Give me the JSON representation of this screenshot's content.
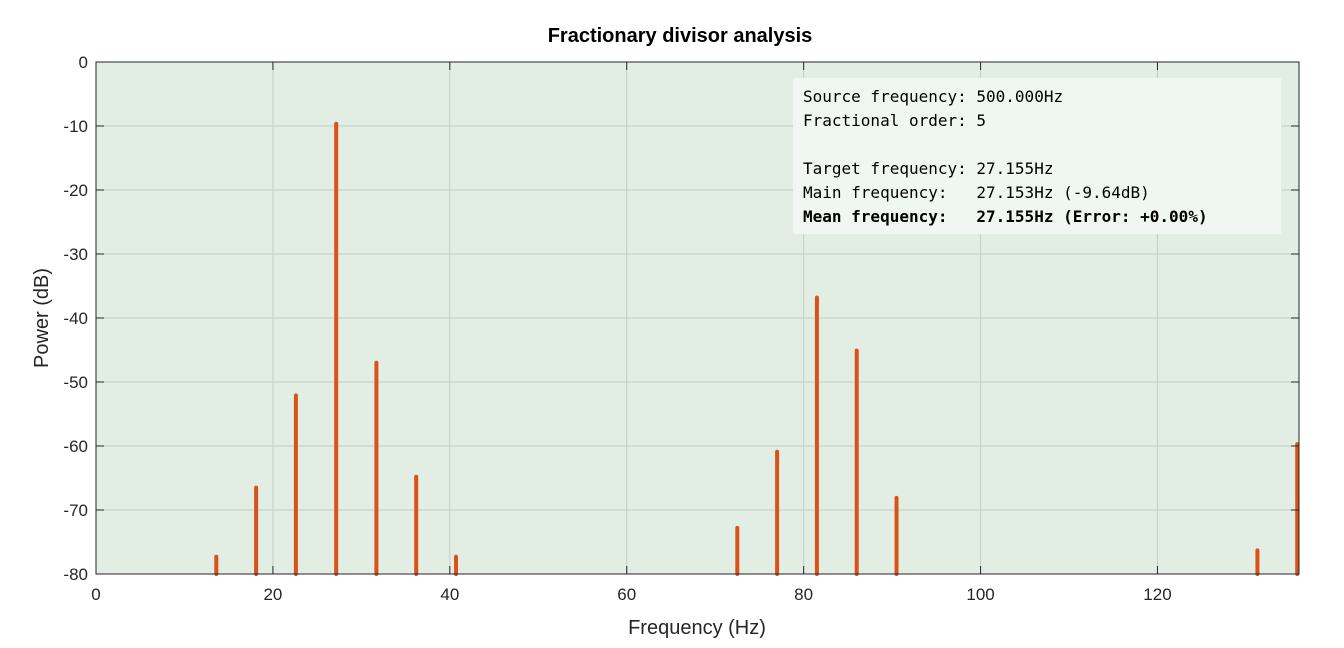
{
  "chart_data": {
    "type": "bar",
    "title": "Fractionary divisor analysis",
    "xlabel": "Frequency (Hz)",
    "ylabel": "Power (dB)",
    "xlim": [
      0,
      136
    ],
    "ylim": [
      -80,
      0
    ],
    "xticks": [
      0,
      20,
      40,
      60,
      80,
      100,
      120
    ],
    "yticks": [
      0,
      -10,
      -20,
      -30,
      -40,
      -50,
      -60,
      -70,
      -80
    ],
    "grid": true,
    "series": [
      {
        "style": "stem",
        "color": "#d95319",
        "points": [
          {
            "x": 13.6,
            "y": -77.3
          },
          {
            "x": 18.1,
            "y": -66.5
          },
          {
            "x": 22.6,
            "y": -52.1
          },
          {
            "x": 27.153,
            "y": -9.64
          },
          {
            "x": 31.7,
            "y": -47.0
          },
          {
            "x": 36.2,
            "y": -64.8
          },
          {
            "x": 40.7,
            "y": -77.3
          },
          {
            "x": 72.5,
            "y": -72.8
          },
          {
            "x": 77.0,
            "y": -60.9
          },
          {
            "x": 81.5,
            "y": -36.8
          },
          {
            "x": 86.0,
            "y": -45.1
          },
          {
            "x": 90.5,
            "y": -68.1
          },
          {
            "x": 131.3,
            "y": -76.3
          },
          {
            "x": 135.8,
            "y": -59.7
          }
        ]
      }
    ],
    "annotation": {
      "lines": [
        {
          "text": "Source frequency: 500.000Hz",
          "bold": false
        },
        {
          "text": "Fractional order: 5",
          "bold": false
        },
        {
          "text": "",
          "bold": false
        },
        {
          "text": "Target frequency: 27.155Hz",
          "bold": false
        },
        {
          "text": "Main frequency:   27.153Hz (-9.64dB)",
          "bold": false
        },
        {
          "text": "Mean frequency:   27.155Hz (Error: +0.00%)",
          "bold": true
        }
      ]
    }
  },
  "colors": {
    "plot_background": "#e2ede4",
    "grid": "#c3cfc5",
    "stem": "#d95319",
    "info_box": "#f0f6f1"
  }
}
